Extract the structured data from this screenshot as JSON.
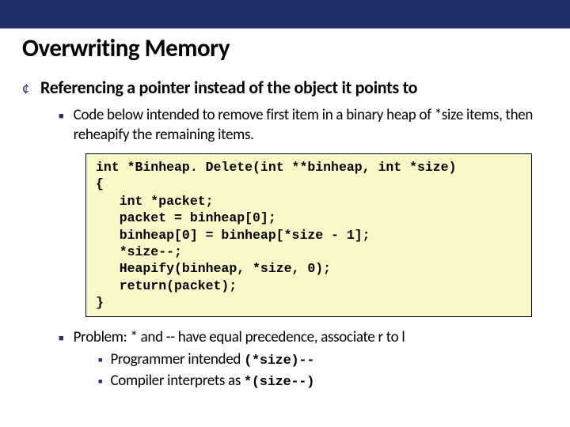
{
  "slide": {
    "top_bar_color": "#1f2e69",
    "background_color": "#ffffff",
    "title": "Overwriting Memory",
    "title_fontsize": 31,
    "heading": "Referencing a pointer instead of the object it points to",
    "heading_fontsize": 22,
    "sub1": "Code below intended to remove first item in a binary heap of *size items, then reheapify the remaining items.",
    "body_fontsize": 19,
    "code_bg": "#fbf8c8",
    "code_border": "#000000",
    "code_fontsize": 16.5,
    "code_lines": [
      "int *Binheap. Delete(int **binheap, int *size)",
      "{",
      "   int *packet;",
      "   packet = binheap[0];",
      "   binheap[0] = binheap[*size - 1];",
      "   *size--;",
      "   Heapify(binheap, *size, 0);",
      "   return(packet);",
      "}"
    ],
    "sub2": "Problem: * and -- have equal precedence, associate r to l",
    "sub3a_plain": "Programmer intended  ",
    "sub3a_code": "(*size)--",
    "sub3b_plain": "Compiler interprets as  ",
    "sub3b_code": "*(size--)",
    "bullet_color": "#1f2e69"
  }
}
